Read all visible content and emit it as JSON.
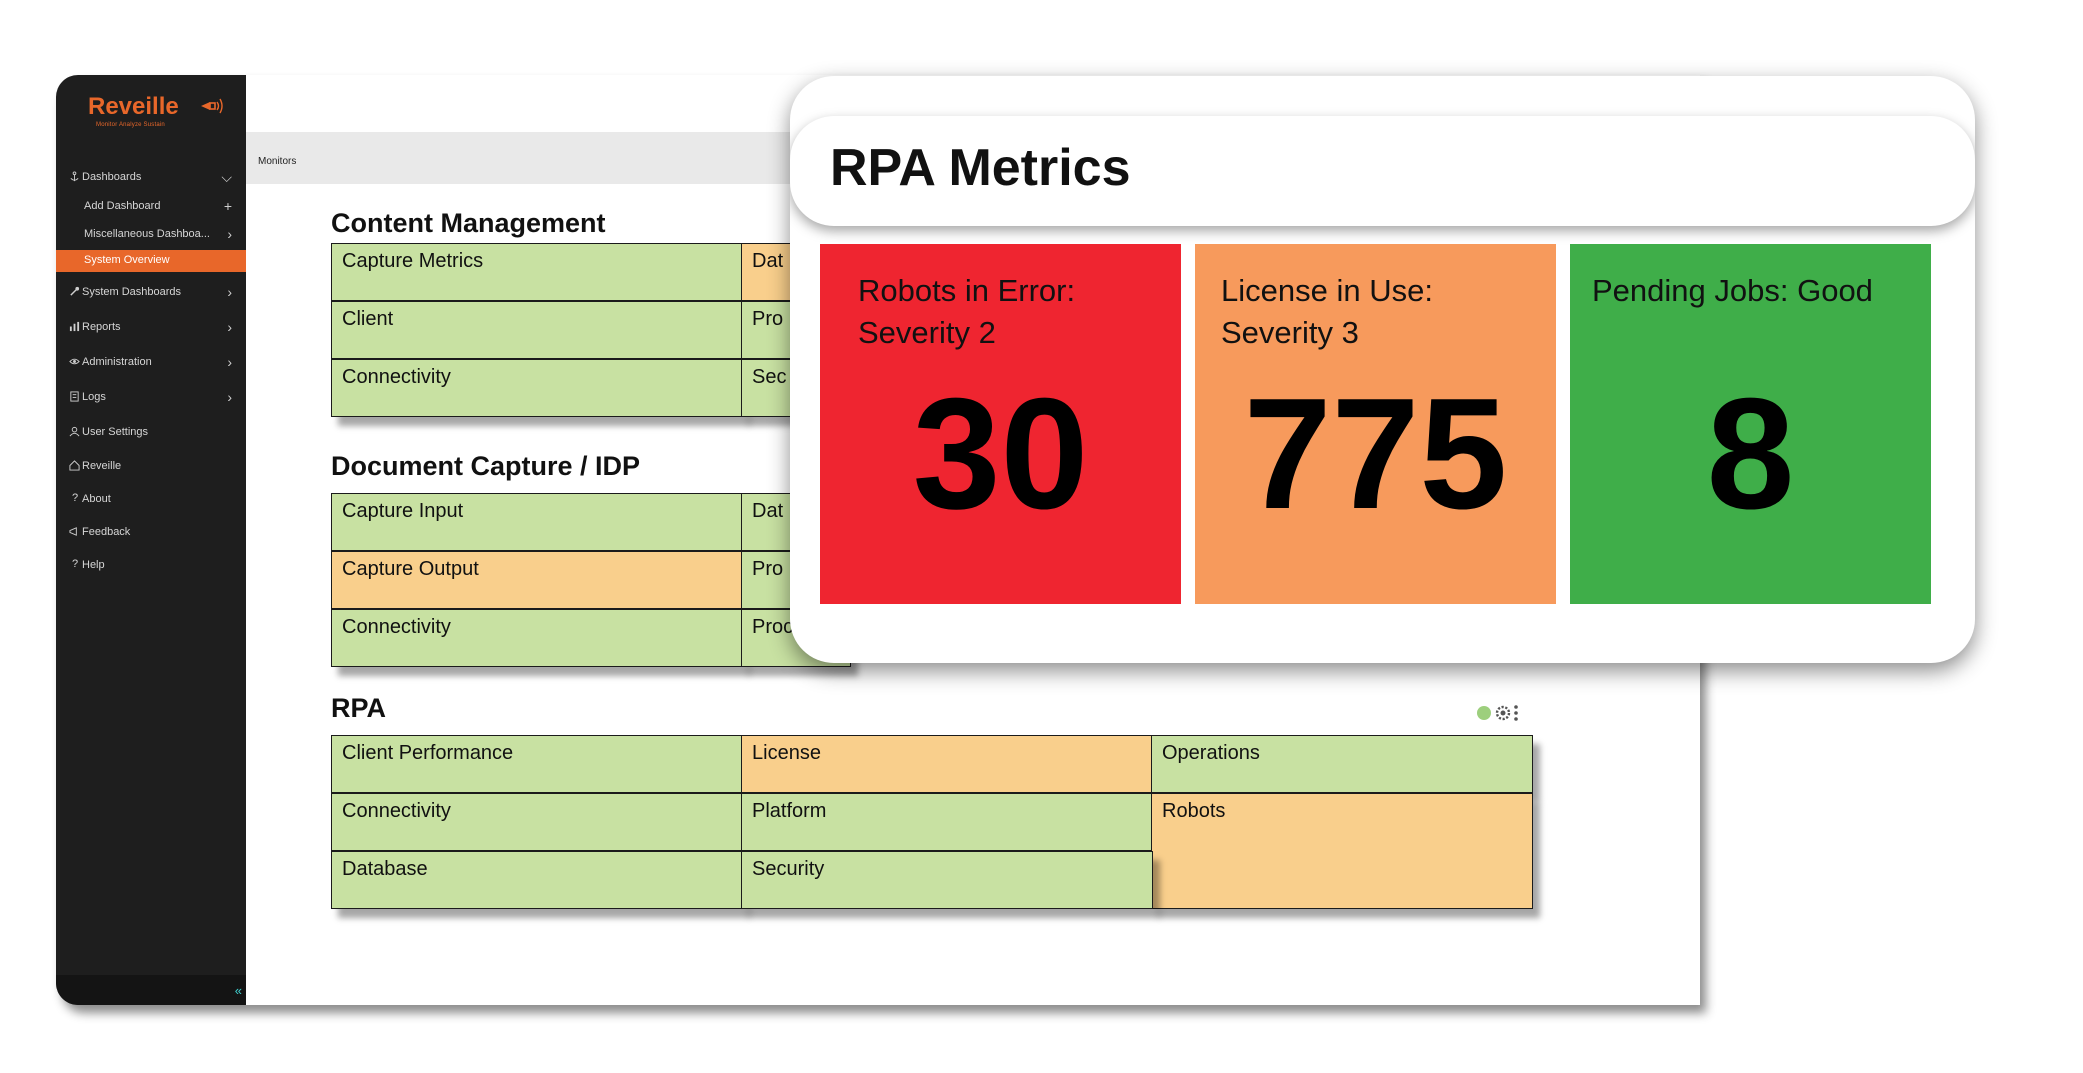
{
  "sidebar": {
    "logo": "Reveille",
    "logo_tagline": "Monitor Analyze Sustain",
    "items": [
      {
        "label": "Dashboards"
      },
      {
        "label": "Add Dashboard"
      },
      {
        "label": "Miscellaneous Dashboa..."
      },
      {
        "label": "System Overview"
      },
      {
        "label": "System Dashboards"
      },
      {
        "label": "Reports"
      },
      {
        "label": "Administration"
      },
      {
        "label": "Logs"
      },
      {
        "label": "User Settings"
      },
      {
        "label": "Reveille"
      },
      {
        "label": "About"
      },
      {
        "label": "Feedback"
      },
      {
        "label": "Help"
      }
    ],
    "collapse_glyph": "«"
  },
  "topbar": {
    "breadcrumb": "Monitors"
  },
  "sections": [
    {
      "title": "Content Management",
      "tiles": [
        {
          "label": "Capture Metrics",
          "status": "green"
        },
        {
          "label": "Dat",
          "status": "orange"
        },
        {
          "label": "Client",
          "status": "green"
        },
        {
          "label": "Pro",
          "status": "green"
        },
        {
          "label": "Connectivity",
          "status": "green"
        },
        {
          "label": "Sec",
          "status": "green"
        }
      ]
    },
    {
      "title": "Document Capture / IDP",
      "tiles": [
        {
          "label": "Capture Input",
          "status": "green"
        },
        {
          "label": "Dat",
          "status": "green"
        },
        {
          "label": "Capture Output",
          "status": "orange"
        },
        {
          "label": "Pro",
          "status": "green"
        },
        {
          "label": "Connectivity",
          "status": "green"
        },
        {
          "label": "Proc",
          "status": "green"
        }
      ]
    },
    {
      "title": "RPA",
      "tiles": [
        {
          "label": "Client Performance",
          "status": "green"
        },
        {
          "label": "License",
          "status": "orange"
        },
        {
          "label": "Operations",
          "status": "green"
        },
        {
          "label": "Connectivity",
          "status": "green"
        },
        {
          "label": "Platform",
          "status": "green"
        },
        {
          "label": "Robots",
          "status": "orange"
        },
        {
          "label": "Database",
          "status": "green"
        },
        {
          "label": "Security",
          "status": "green"
        }
      ]
    }
  ],
  "metrics_panel": {
    "title": "RPA Metrics",
    "cards": [
      {
        "label_line1": "Robots in Error:",
        "label_line2": "Severity 2",
        "value": "30",
        "color": "#ef2530"
      },
      {
        "label_line1": "License in Use:",
        "label_line2": "Severity 3",
        "value": "775",
        "color": "#f79a5c"
      },
      {
        "label_line1": "Pending Jobs: Good",
        "label_line2": "",
        "value": "8",
        "color": "#3fae49"
      }
    ]
  },
  "colors": {
    "brand": "#e8672a",
    "tile_green": "#c8e1a2",
    "tile_orange": "#f9cf8c",
    "sidebar_bg": "#1e1e1e",
    "status_dot": "#9dcf7d"
  }
}
